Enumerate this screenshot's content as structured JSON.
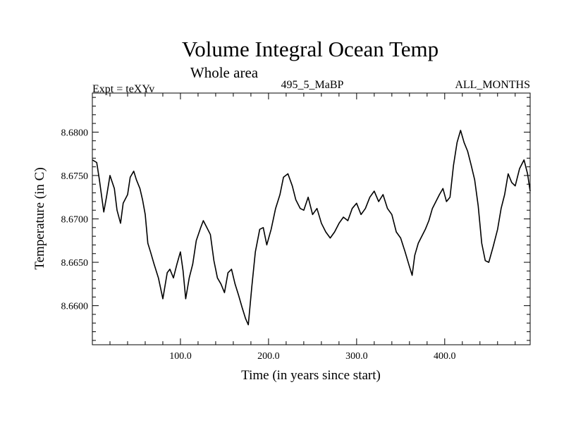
{
  "chart_data": {
    "type": "line",
    "title": "Volume Integral Ocean Temp",
    "subtitle": "Whole area",
    "top_left_label": "Expt = teXYv",
    "top_center_label": "495_5_MaBP",
    "top_right_label": "ALL_MONTHS",
    "xlabel": "Time (in years since start)",
    "ylabel": "Temperature (in C)",
    "xlim": [
      0,
      497
    ],
    "ylim": [
      8.6555,
      8.6845
    ],
    "xticks": [
      100,
      200,
      300,
      400
    ],
    "xtick_labels": [
      "100.0",
      "200.0",
      "300.0",
      "400.0"
    ],
    "yticks": [
      8.66,
      8.665,
      8.67,
      8.675,
      8.68
    ],
    "ytick_labels": [
      "8.6600",
      "8.6650",
      "8.6700",
      "8.6750",
      "8.6800"
    ],
    "grid": false,
    "legend": "none",
    "line_color": "#000000",
    "series": [
      {
        "x": [
          0,
          5,
          8,
          13,
          16,
          20,
          25,
          28,
          32,
          35,
          40,
          43,
          47,
          50,
          54,
          57,
          60,
          63,
          66,
          70,
          75,
          80,
          85,
          88,
          92,
          96,
          100,
          103,
          106,
          110,
          114,
          118,
          123,
          126,
          130,
          134,
          138,
          142,
          146,
          150,
          154,
          158,
          162,
          166,
          170,
          174,
          177,
          181,
          185,
          190,
          194,
          198,
          203,
          208,
          213,
          217,
          222,
          227,
          231,
          236,
          240,
          245,
          250,
          255,
          260,
          265,
          270,
          275,
          280,
          285,
          290,
          295,
          300,
          305,
          310,
          315,
          320,
          325,
          330,
          335,
          340,
          345,
          350,
          355,
          360,
          363,
          366,
          370,
          374,
          378,
          382,
          386,
          390,
          394,
          398,
          402,
          406,
          410,
          414,
          418,
          422,
          426,
          430,
          434,
          438,
          442,
          446,
          450,
          455,
          460,
          464,
          468,
          472,
          476,
          480,
          485,
          490,
          494,
          497
        ],
        "y": [
          8.6768,
          8.6765,
          8.6745,
          8.6708,
          8.6725,
          8.675,
          8.6735,
          8.671,
          8.6695,
          8.6718,
          8.6728,
          8.6748,
          8.6755,
          8.6745,
          8.6735,
          8.6722,
          8.6705,
          8.6672,
          8.6662,
          8.6648,
          8.6632,
          8.6608,
          8.6638,
          8.6642,
          8.6632,
          8.6648,
          8.6662,
          8.664,
          8.6608,
          8.6632,
          8.6648,
          8.6675,
          8.669,
          8.6698,
          8.669,
          8.6682,
          8.6652,
          8.6632,
          8.6625,
          8.6615,
          8.6638,
          8.6642,
          8.6625,
          8.6612,
          8.6598,
          8.6585,
          8.6578,
          8.6622,
          8.6662,
          8.6688,
          8.669,
          8.667,
          8.6688,
          8.6712,
          8.6728,
          8.6748,
          8.6752,
          8.6738,
          8.6722,
          8.6712,
          8.671,
          8.6725,
          8.6705,
          8.6712,
          8.6695,
          8.6685,
          8.6678,
          8.6685,
          8.6695,
          8.6702,
          8.6698,
          8.6712,
          8.6718,
          8.6705,
          8.6712,
          8.6725,
          8.6732,
          8.672,
          8.6728,
          8.6712,
          8.6705,
          8.6685,
          8.6678,
          8.6662,
          8.6645,
          8.6635,
          8.6658,
          8.6672,
          8.668,
          8.6688,
          8.6698,
          8.6712,
          8.672,
          8.6728,
          8.6735,
          8.672,
          8.6725,
          8.6762,
          8.6788,
          8.6802,
          8.6788,
          8.6778,
          8.6762,
          8.6745,
          8.6715,
          8.6672,
          8.6652,
          8.665,
          8.6668,
          8.6688,
          8.6712,
          8.6728,
          8.6752,
          8.6742,
          8.6738,
          8.6758,
          8.6768,
          8.6752,
          8.6732
        ]
      }
    ]
  }
}
